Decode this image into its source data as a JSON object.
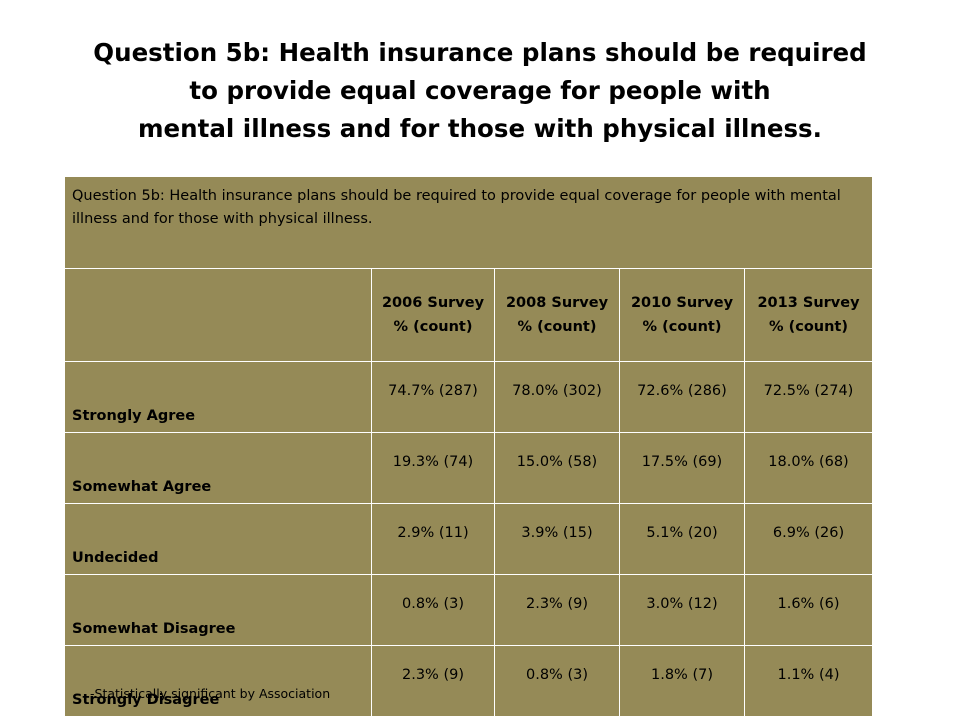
{
  "slide": {
    "title_lines": [
      "Question 5b:  Health insurance plans should be required",
      "to provide equal coverage for people with",
      "mental illness and for those with physical illness."
    ]
  },
  "table": {
    "caption": "Question 5b:  Health insurance plans should be required to provide equal coverage for people with mental illness and for those with physical illness.",
    "columns": [
      {
        "name": "2006 Survey",
        "unit": "% (count)"
      },
      {
        "name": "2008 Survey",
        "unit": "% (count)"
      },
      {
        "name": "2010 Survey",
        "unit": "% (count)"
      },
      {
        "name": "2013 Survey",
        "unit": "% (count)"
      }
    ],
    "rows": [
      {
        "label": "Strongly Agree",
        "values": [
          "74.7% (287)",
          "78.0% (302)",
          "72.6% (286)",
          "72.5% (274)"
        ]
      },
      {
        "label": "Somewhat Agree",
        "values": [
          "19.3% (74)",
          "15.0% (58)",
          "17.5% (69)",
          "18.0% (68)"
        ]
      },
      {
        "label": "Undecided",
        "values": [
          "2.9% (11)",
          "3.9% (15)",
          "5.1% (20)",
          "6.9% (26)"
        ]
      },
      {
        "label": "Somewhat Disagree",
        "values": [
          "0.8% (3)",
          "2.3% (9)",
          "3.0% (12)",
          "1.6% (6)"
        ]
      },
      {
        "label": "Strongly Disagree",
        "values": [
          "2.3% (9)",
          "0.8% (3)",
          "1.8% (7)",
          "1.1% (4)"
        ]
      }
    ],
    "colors": {
      "cell_fill": "#958a57",
      "border": "#ffffff"
    }
  },
  "footnote": "-Statistically significant by Association"
}
